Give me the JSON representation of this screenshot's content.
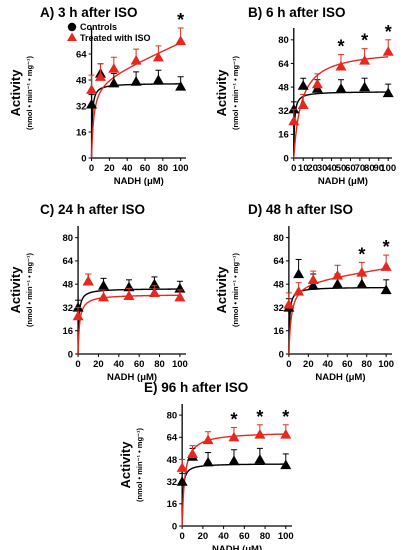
{
  "colors": {
    "controls": "#000000",
    "treated": "#e8281e"
  },
  "legend": {
    "controls": "Controls",
    "treated": "Treated with ISO",
    "placement": "top-left of panel A"
  },
  "chart_data": [
    {
      "type": "scatter",
      "title": "A) 3 h after ISO",
      "ylabel": "Activity",
      "ylabel_unit": "(nmol • min⁻¹ • mg⁻¹)",
      "xlabel": "NADH (μM)",
      "xticks": [
        0,
        20,
        40,
        60,
        80,
        100
      ],
      "yticks": [
        0,
        16,
        32,
        48,
        64
      ],
      "xlim": [
        -4,
        106
      ],
      "ylim": [
        0,
        80
      ],
      "x": [
        0,
        10,
        25,
        50,
        75,
        100
      ],
      "series": [
        {
          "name": "Controls",
          "values": [
            33,
            52,
            46,
            47,
            48,
            44
          ],
          "errors": [
            6,
            6,
            6,
            6,
            6,
            6
          ],
          "fit_vmax": 46,
          "fit_km": 0.8
        },
        {
          "name": "Treated with ISO",
          "values": [
            42,
            50,
            55,
            60,
            62,
            72
          ],
          "errors": [
            9,
            8,
            7,
            7,
            7,
            8
          ],
          "fit_vmax": 48,
          "fit_km": 2.5,
          "fit_slope": 0.24
        }
      ],
      "significance": [
        100
      ]
    },
    {
      "type": "scatter",
      "title": "B) 6 h after ISO",
      "ylabel": "Activity",
      "ylabel_unit": "(nmol • min⁻¹ • mg⁻¹)",
      "xlabel": "NADH (μM)",
      "xticks": [
        0,
        10,
        20,
        30,
        40,
        50,
        60,
        70,
        80,
        90,
        100
      ],
      "yticks": [
        0,
        16,
        32,
        48,
        64,
        80
      ],
      "xlim": [
        -4,
        104
      ],
      "ylim": [
        0,
        88
      ],
      "x": [
        0,
        10,
        25,
        50,
        75,
        100
      ],
      "series": [
        {
          "name": "Controls",
          "values": [
            33,
            49,
            47,
            47,
            48,
            44
          ],
          "errors": [
            5,
            5,
            6,
            6,
            6,
            6
          ],
          "fit_vmax": 45,
          "fit_km": 0.8
        },
        {
          "name": "Treated with ISO",
          "values": [
            25,
            36,
            50,
            62,
            66,
            72
          ],
          "errors": [
            8,
            7,
            7,
            8,
            8,
            8
          ],
          "fit_vmax": 74,
          "fit_km": 8
        }
      ],
      "significance": [
        50,
        75,
        100
      ]
    },
    {
      "type": "scatter",
      "title": "C) 24 h after ISO",
      "ylabel": "Activity",
      "ylabel_unit": "(nmol • min⁻¹ • mg⁻¹)",
      "xlabel": "NADH (μM)",
      "xticks": [
        0,
        20,
        40,
        60,
        80,
        100
      ],
      "yticks": [
        0,
        16,
        32,
        48,
        64,
        80
      ],
      "xlim": [
        -4,
        106
      ],
      "ylim": [
        0,
        88
      ],
      "x": [
        0,
        10,
        25,
        50,
        75,
        100
      ],
      "series": [
        {
          "name": "Controls",
          "values": [
            32,
            50,
            47,
            46,
            48,
            45
          ],
          "errors": [
            5,
            5,
            5,
            5,
            5,
            5
          ],
          "fit_vmax": 45,
          "fit_km": 0.8
        },
        {
          "name": "Treated with ISO",
          "values": [
            26,
            50,
            39,
            40,
            42,
            39
          ],
          "errors": [
            6,
            5,
            5,
            5,
            5,
            5
          ],
          "fit_vmax": 41,
          "fit_km": 1.5
        }
      ],
      "significance": []
    },
    {
      "type": "scatter",
      "title": "D) 48 h after ISO",
      "ylabel": "Activity",
      "ylabel_unit": "(nmol • min⁻¹ • mg⁻¹)",
      "xlabel": "NADH (μM)",
      "xticks": [
        0,
        20,
        40,
        60,
        80,
        100
      ],
      "yticks": [
        0,
        16,
        32,
        48,
        64,
        80
      ],
      "xlim": [
        -4,
        106
      ],
      "ylim": [
        0,
        88
      ],
      "x": [
        0,
        10,
        25,
        50,
        75,
        100
      ],
      "series": [
        {
          "name": "Controls",
          "values": [
            32,
            55,
            47,
            48,
            48,
            44
          ],
          "errors": [
            6,
            10,
            8,
            7,
            7,
            7
          ],
          "fit_vmax": 46,
          "fit_km": 0.8
        },
        {
          "name": "Treated with ISO",
          "values": [
            34,
            43,
            51,
            54,
            56,
            60
          ],
          "errors": [
            8,
            6,
            6,
            7,
            7,
            8
          ],
          "fit_vmax": 50,
          "fit_km": 2.5,
          "fit_slope": 0.1
        }
      ],
      "significance": [
        75,
        100
      ]
    },
    {
      "type": "scatter",
      "title": "E) 96 h after ISO",
      "ylabel": "Activity",
      "ylabel_unit": "(nmol • min⁻¹ • mg⁻¹)",
      "xlabel": "NADH (μM)",
      "xticks": [
        0,
        20,
        40,
        60,
        80,
        100
      ],
      "yticks": [
        0,
        16,
        32,
        48,
        64,
        80
      ],
      "xlim": [
        -4,
        106
      ],
      "ylim": [
        0,
        88
      ],
      "x": [
        0,
        10,
        25,
        50,
        75,
        100
      ],
      "series": [
        {
          "name": "Controls",
          "values": [
            32,
            50,
            46,
            47,
            48,
            44
          ],
          "errors": [
            6,
            6,
            7,
            8,
            8,
            8
          ],
          "fit_vmax": 45,
          "fit_km": 0.8
        },
        {
          "name": "Treated with ISO",
          "values": [
            42,
            52,
            62,
            64,
            66,
            66
          ],
          "errors": [
            6,
            6,
            6,
            7,
            7,
            7
          ],
          "fit_vmax": 68,
          "fit_km": 2.5
        }
      ],
      "significance": [
        50,
        75,
        100
      ]
    }
  ]
}
